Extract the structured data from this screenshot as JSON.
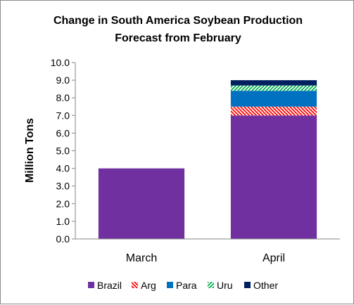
{
  "chart_data": {
    "type": "bar",
    "stacked": true,
    "title_lines": [
      "Change in South America Soybean Production",
      "Forecast from February"
    ],
    "ylabel": "Million Tons",
    "xlabel": "",
    "ylim": [
      0,
      10
    ],
    "yticks": [
      "0.0",
      "1.0",
      "2.0",
      "3.0",
      "4.0",
      "5.0",
      "6.0",
      "7.0",
      "8.0",
      "9.0",
      "10.0"
    ],
    "categories": [
      "March",
      "April"
    ],
    "grid": false,
    "legend_position": "bottom",
    "series": [
      {
        "name": "Brazil",
        "values": [
          4.0,
          7.0
        ],
        "color": "#7030a0",
        "pattern": "solid"
      },
      {
        "name": "Arg",
        "values": [
          0,
          0.5
        ],
        "color": "#ff0000",
        "pattern": "diagonal-down"
      },
      {
        "name": "Para",
        "values": [
          0,
          0.9
        ],
        "color": "#0070c0",
        "pattern": "solid"
      },
      {
        "name": "Uru",
        "values": [
          0,
          0.3
        ],
        "color": "#00b050",
        "pattern": "diagonal-up"
      },
      {
        "name": "Other",
        "values": [
          0,
          0.3
        ],
        "color": "#002060",
        "pattern": "solid"
      }
    ]
  }
}
